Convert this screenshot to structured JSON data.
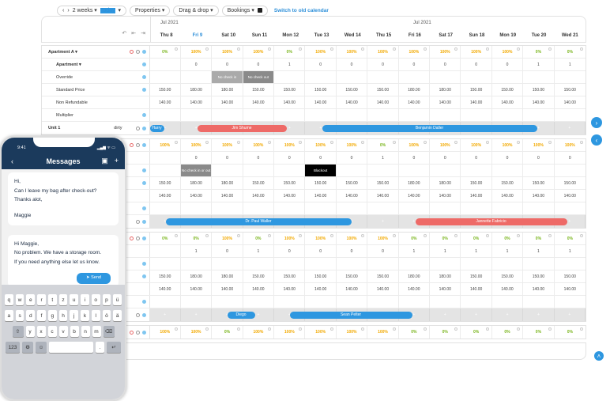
{
  "toolbar": {
    "prev": "‹",
    "next": "›",
    "range": "2 weeks ▾",
    "today": "Today",
    "today_arrow": "▾",
    "properties": "Properties ▾",
    "drag": "Drag & drop ▾",
    "bookings": "Bookings ▾",
    "switch": "Switch to old calendar"
  },
  "header": {
    "month1": "Jul 2021",
    "month2": "Jul 2021",
    "tools": [
      "↶",
      "⇤",
      "⇥"
    ],
    "days": [
      "Thu 8",
      "Fri 9",
      "Sat 10",
      "Sun 11",
      "Mon 12",
      "Tue 13",
      "Wed 14",
      "Thu 15",
      "Fri 16",
      "Sat 17",
      "Sun 18",
      "Mon 19",
      "Tue 20",
      "Wed 21"
    ]
  },
  "apartment_a": {
    "label": "Apartment A ▾",
    "occupancy": [
      "0%",
      "100%",
      "100%",
      "100%",
      "0%",
      "100%",
      "100%",
      "100%",
      "100%",
      "100%",
      "100%",
      "100%",
      "0%",
      "0%"
    ],
    "apartment": {
      "label": "Apartment ▾",
      "avail": [
        "",
        "0",
        "0",
        "0",
        "1",
        "0",
        "0",
        "0",
        "0",
        "0",
        "0",
        "0",
        "1",
        "1"
      ]
    },
    "override": {
      "label": "Override",
      "no_check_in": "No check in",
      "no_check_out": "No check out"
    },
    "standard": {
      "label": "Standard Price",
      "values": [
        "150.00",
        "180.00",
        "180.00",
        "150.00",
        "150.00",
        "150.00",
        "150.00",
        "150.00",
        "180.00",
        "180.00",
        "150.00",
        "150.00",
        "150.00",
        "150.00"
      ]
    },
    "nonref": {
      "label": "Non Refundable",
      "values": [
        "140.00",
        "140.00",
        "140.00",
        "140.00",
        "140.00",
        "140.00",
        "140.00",
        "140.00",
        "140.00",
        "140.00",
        "140.00",
        "140.00",
        "140.00",
        "140.00"
      ]
    },
    "multiplier": {
      "label": "Multiplier"
    },
    "unit": {
      "label": "Unit 1",
      "status": "dirty",
      "bookings": [
        {
          "name": "Harry"
        },
        {
          "name": "Jim Shume"
        },
        {
          "name": "Benjamin Daller"
        }
      ]
    }
  },
  "block2": {
    "occupancy": [
      "100%",
      "100%",
      "100%",
      "100%",
      "100%",
      "100%",
      "100%",
      "0%",
      "100%",
      "100%",
      "100%",
      "100%",
      "100%",
      "100%"
    ],
    "avail": [
      "",
      "0",
      "0",
      "0",
      "0",
      "0",
      "0",
      "1",
      "0",
      "0",
      "0",
      "0",
      "0",
      "0"
    ],
    "popup1": "No check in or out",
    "blackout": "Blackout",
    "standard": [
      "150.00",
      "180.00",
      "180.00",
      "150.00",
      "150.00",
      "150.00",
      "150.00",
      "150.00",
      "180.00",
      "180.00",
      "150.00",
      "150.00",
      "150.00",
      "150.00"
    ],
    "nonref": [
      "140.00",
      "140.00",
      "140.00",
      "140.00",
      "140.00",
      "140.00",
      "140.00",
      "140.00",
      "140.00",
      "140.00",
      "140.00",
      "140.00",
      "140.00",
      "140.00"
    ],
    "bookings": [
      {
        "name": "Dr. Paul Waller"
      },
      {
        "name": "Jannette Fabricio"
      }
    ]
  },
  "block3": {
    "occupancy": [
      "0%",
      "0%",
      "100%",
      "0%",
      "100%",
      "100%",
      "100%",
      "100%",
      "0%",
      "0%",
      "0%",
      "0%",
      "0%",
      "0%"
    ],
    "avail": [
      "",
      "1",
      "0",
      "1",
      "0",
      "0",
      "0",
      "0",
      "1",
      "1",
      "1",
      "1",
      "1",
      "1"
    ],
    "standard": [
      "150.00",
      "180.00",
      "180.00",
      "150.00",
      "150.00",
      "150.00",
      "150.00",
      "150.00",
      "180.00",
      "180.00",
      "150.00",
      "150.00",
      "150.00",
      "150.00"
    ],
    "nonref": [
      "140.00",
      "140.00",
      "140.00",
      "140.00",
      "140.00",
      "140.00",
      "140.00",
      "140.00",
      "140.00",
      "140.00",
      "140.00",
      "140.00",
      "140.00",
      "140.00"
    ],
    "bookings": [
      {
        "name": "Diego"
      },
      {
        "name": "Sean Pelter"
      }
    ]
  },
  "block4": {
    "occupancy": [
      "100%",
      "100%",
      "0%",
      "100%",
      "100%",
      "100%",
      "100%",
      "100%",
      "0%",
      "0%",
      "0%",
      "0%",
      "0%",
      "0%"
    ]
  },
  "phone": {
    "time": "9:41",
    "status": "▂▄▆ ᯤ ▭",
    "title": "Messages",
    "msg1": [
      "Hi,",
      "Can I leave my bag after check-out?",
      "Thanks alot,",
      "",
      "Maggie"
    ],
    "msg2": [
      "Hi Maggie,",
      "No problem. We have a storage room.",
      "If you need anything else let us know."
    ],
    "send": "Send",
    "keys": [
      [
        "q",
        "w",
        "e",
        "r",
        "t",
        "z",
        "u",
        "i",
        "o",
        "p",
        "ü"
      ],
      [
        "a",
        "s",
        "d",
        "f",
        "g",
        "h",
        "j",
        "k",
        "l",
        "ö",
        "ä"
      ],
      [
        "⇧",
        "y",
        "x",
        "c",
        "v",
        "b",
        "n",
        "m",
        "⌫"
      ],
      [
        "123",
        "⚙",
        "☺",
        " ",
        ".",
        "↵"
      ]
    ]
  }
}
